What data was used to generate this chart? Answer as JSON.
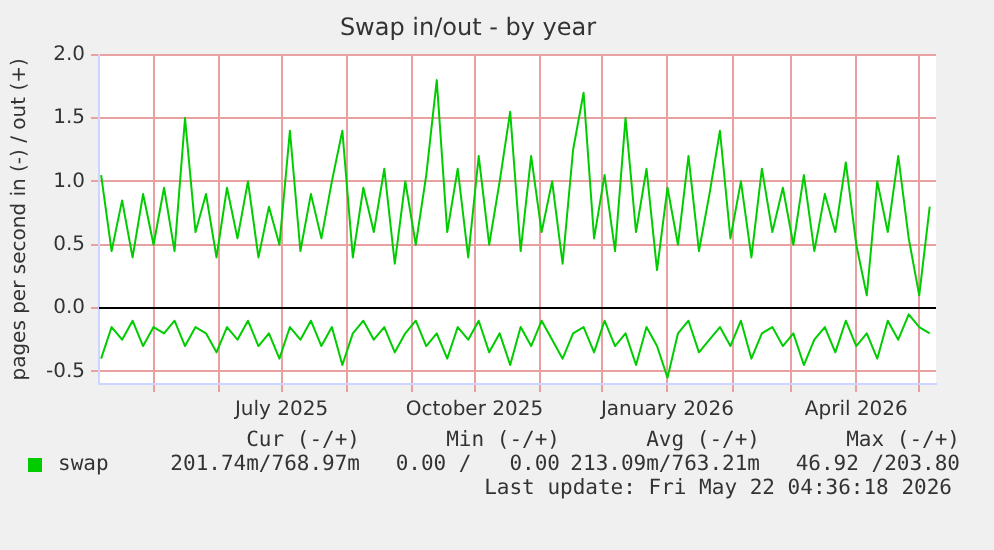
{
  "chart_data": {
    "type": "line",
    "title": "Swap in/out - by year",
    "ylabel": "pages per second in (-) / out (+)",
    "x": [
      "2025-04-06",
      "2025-04-11",
      "2025-04-16",
      "2025-04-21",
      "2025-04-26",
      "2025-05-01",
      "2025-05-06",
      "2025-05-11",
      "2025-05-16",
      "2025-05-21",
      "2025-05-26",
      "2025-05-31",
      "2025-06-05",
      "2025-06-10",
      "2025-06-15",
      "2025-06-20",
      "2025-06-25",
      "2025-06-30",
      "2025-07-05",
      "2025-07-10",
      "2025-07-15",
      "2025-07-20",
      "2025-07-25",
      "2025-07-30",
      "2025-08-04",
      "2025-08-09",
      "2025-08-14",
      "2025-08-19",
      "2025-08-24",
      "2025-08-29",
      "2025-09-03",
      "2025-09-08",
      "2025-09-13",
      "2025-09-18",
      "2025-09-23",
      "2025-09-28",
      "2025-10-03",
      "2025-10-08",
      "2025-10-13",
      "2025-10-18",
      "2025-10-23",
      "2025-10-28",
      "2025-11-02",
      "2025-11-07",
      "2025-11-12",
      "2025-11-17",
      "2025-11-22",
      "2025-11-27",
      "2025-12-02",
      "2025-12-07",
      "2025-12-12",
      "2025-12-17",
      "2025-12-22",
      "2025-12-27",
      "2026-01-01",
      "2026-01-06",
      "2026-01-11",
      "2026-01-16",
      "2026-01-21",
      "2026-01-26",
      "2026-01-31",
      "2026-02-05",
      "2026-02-10",
      "2026-02-15",
      "2026-02-20",
      "2026-02-25",
      "2026-03-02",
      "2026-03-07",
      "2026-03-12",
      "2026-03-17",
      "2026-03-22",
      "2026-03-27",
      "2026-04-01",
      "2026-04-06",
      "2026-04-11",
      "2026-04-16",
      "2026-04-21",
      "2026-04-26",
      "2026-05-01",
      "2026-05-06"
    ],
    "series": [
      {
        "name": "swap",
        "color": "#00cc00",
        "values": [
          1.05,
          0.45,
          0.85,
          0.4,
          0.9,
          0.5,
          0.95,
          0.45,
          1.5,
          0.6,
          0.9,
          0.4,
          0.95,
          0.55,
          1.0,
          0.4,
          0.8,
          0.5,
          1.4,
          0.45,
          0.9,
          0.55,
          1.0,
          1.4,
          0.4,
          0.95,
          0.6,
          1.1,
          0.35,
          1.0,
          0.5,
          1.05,
          1.8,
          0.6,
          1.1,
          0.4,
          1.2,
          0.5,
          1.0,
          1.55,
          0.45,
          1.2,
          0.6,
          1.0,
          0.35,
          1.25,
          1.7,
          0.55,
          1.05,
          0.45,
          1.5,
          0.6,
          1.1,
          0.3,
          0.95,
          0.5,
          1.2,
          0.45,
          0.9,
          1.4,
          0.55,
          1.0,
          0.4,
          1.1,
          0.6,
          0.95,
          0.5,
          1.05,
          0.45,
          0.9,
          0.6,
          1.15,
          0.5,
          0.1,
          1.0,
          0.6,
          1.2,
          0.55,
          0.1,
          0.8
        ]
      },
      {
        "color": "#00cc00",
        "values": [
          -0.4,
          -0.15,
          -0.25,
          -0.1,
          -0.3,
          -0.15,
          -0.2,
          -0.1,
          -0.3,
          -0.15,
          -0.2,
          -0.35,
          -0.15,
          -0.25,
          -0.1,
          -0.3,
          -0.2,
          -0.4,
          -0.15,
          -0.25,
          -0.1,
          -0.3,
          -0.15,
          -0.45,
          -0.2,
          -0.1,
          -0.25,
          -0.15,
          -0.35,
          -0.2,
          -0.1,
          -0.3,
          -0.2,
          -0.4,
          -0.15,
          -0.25,
          -0.1,
          -0.35,
          -0.2,
          -0.45,
          -0.15,
          -0.3,
          -0.1,
          -0.25,
          -0.4,
          -0.2,
          -0.15,
          -0.35,
          -0.1,
          -0.3,
          -0.2,
          -0.45,
          -0.15,
          -0.3,
          -0.55,
          -0.2,
          -0.1,
          -0.35,
          -0.25,
          -0.15,
          -0.3,
          -0.1,
          -0.4,
          -0.2,
          -0.15,
          -0.3,
          -0.2,
          -0.45,
          -0.25,
          -0.15,
          -0.35,
          -0.1,
          -0.3,
          -0.2,
          -0.4,
          -0.1,
          -0.25,
          -0.05,
          -0.15,
          -0.2
        ]
      }
    ],
    "xlim": [
      "2025-04-05",
      "2026-05-09"
    ],
    "xticks": [
      {
        "value": "2025-05-01",
        "label": null
      },
      {
        "value": "2025-06-01",
        "label": null
      },
      {
        "value": "2025-07-01",
        "label": "July 2025"
      },
      {
        "value": "2025-08-01",
        "label": null
      },
      {
        "value": "2025-09-01",
        "label": null
      },
      {
        "value": "2025-10-01",
        "label": "October 2025"
      },
      {
        "value": "2025-11-01",
        "label": null
      },
      {
        "value": "2025-12-01",
        "label": null
      },
      {
        "value": "2026-01-01",
        "label": "January 2026"
      },
      {
        "value": "2026-02-01",
        "label": null
      },
      {
        "value": "2026-03-01",
        "label": null
      },
      {
        "value": "2026-04-01",
        "label": "April 2026"
      },
      {
        "value": "2026-05-01",
        "label": null
      }
    ],
    "ylim": [
      -0.6,
      2.0
    ],
    "yticks": [
      {
        "value": -0.5,
        "label": "-0.5"
      },
      {
        "value": 0,
        "label": "0.0"
      },
      {
        "value": 0.5,
        "label": "0.5"
      },
      {
        "value": 1,
        "label": "1.0"
      },
      {
        "value": 1.5,
        "label": "1.5"
      },
      {
        "value": 2,
        "label": "2.0"
      }
    ],
    "ref_lines": [
      {
        "axis": "y",
        "value": 0,
        "color": "#000000"
      }
    ],
    "grid": true,
    "legend": "bottom",
    "marker": "none",
    "line_style": "solid",
    "annotations": [
      "Cur (-/+)",
      "Min (-/+)",
      "Avg (-/+)",
      "Max (-/+)",
      "201.74m/768.97m",
      "0.00 /   0.00",
      "213.09m/763.21m",
      "46.92 /203.80",
      "Last update: Fri May 22 04:36:18 2026"
    ]
  }
}
